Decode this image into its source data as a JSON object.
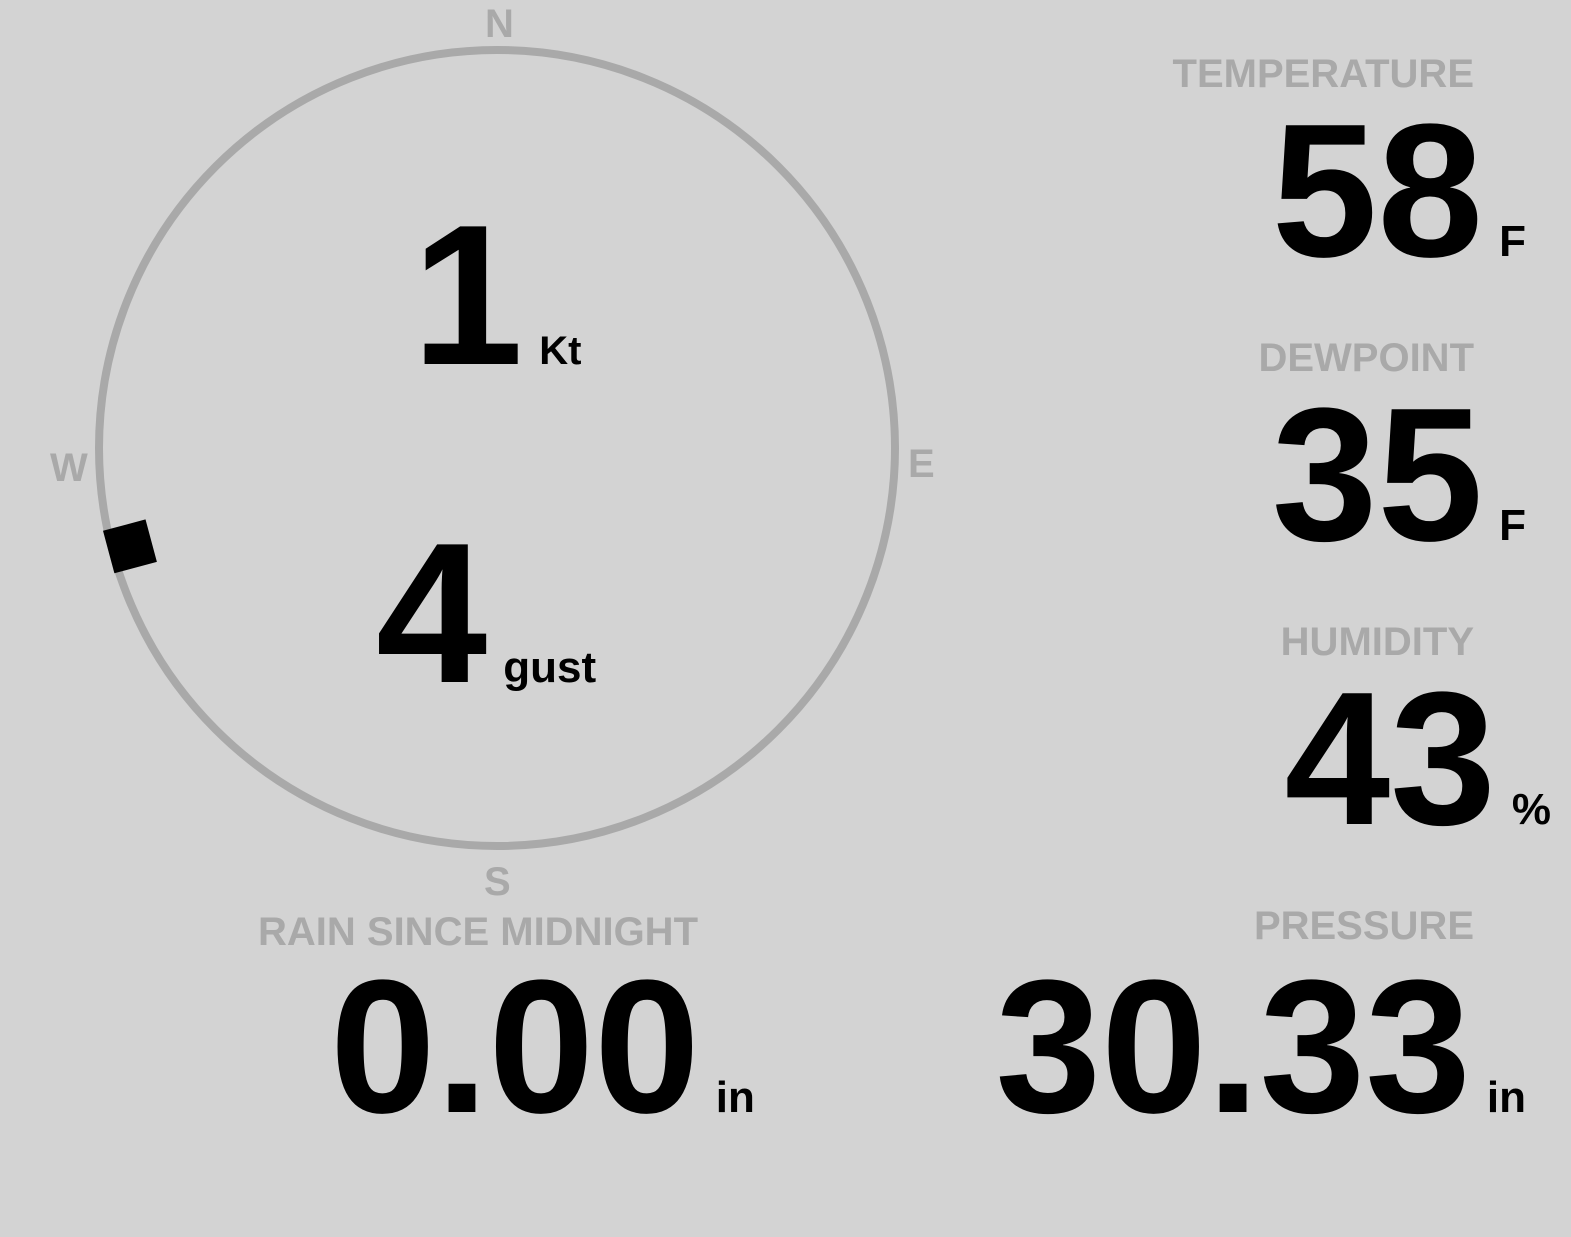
{
  "compass": {
    "north": "N",
    "south": "S",
    "east": "E",
    "west": "W",
    "wind_direction_deg": 255,
    "ring_color": "#a9a9a9",
    "marker_color": "#000000"
  },
  "wind": {
    "speed": "1",
    "speed_unit": "Kt",
    "gust": "4",
    "gust_unit": "gust"
  },
  "temperature": {
    "label": "TEMPERATURE",
    "value": "58",
    "unit": "F"
  },
  "dewpoint": {
    "label": "DEWPOINT",
    "value": "35",
    "unit": "F"
  },
  "humidity": {
    "label": "HUMIDITY",
    "value": "43",
    "unit": "%"
  },
  "rain": {
    "label": "RAIN SINCE MIDNIGHT",
    "value": "0.00",
    "unit": "in"
  },
  "pressure": {
    "label": "PRESSURE",
    "value": "30.33",
    "unit": "in"
  },
  "colors": {
    "background": "#d3d3d3",
    "label": "#a9a9a9",
    "value": "#000000"
  }
}
